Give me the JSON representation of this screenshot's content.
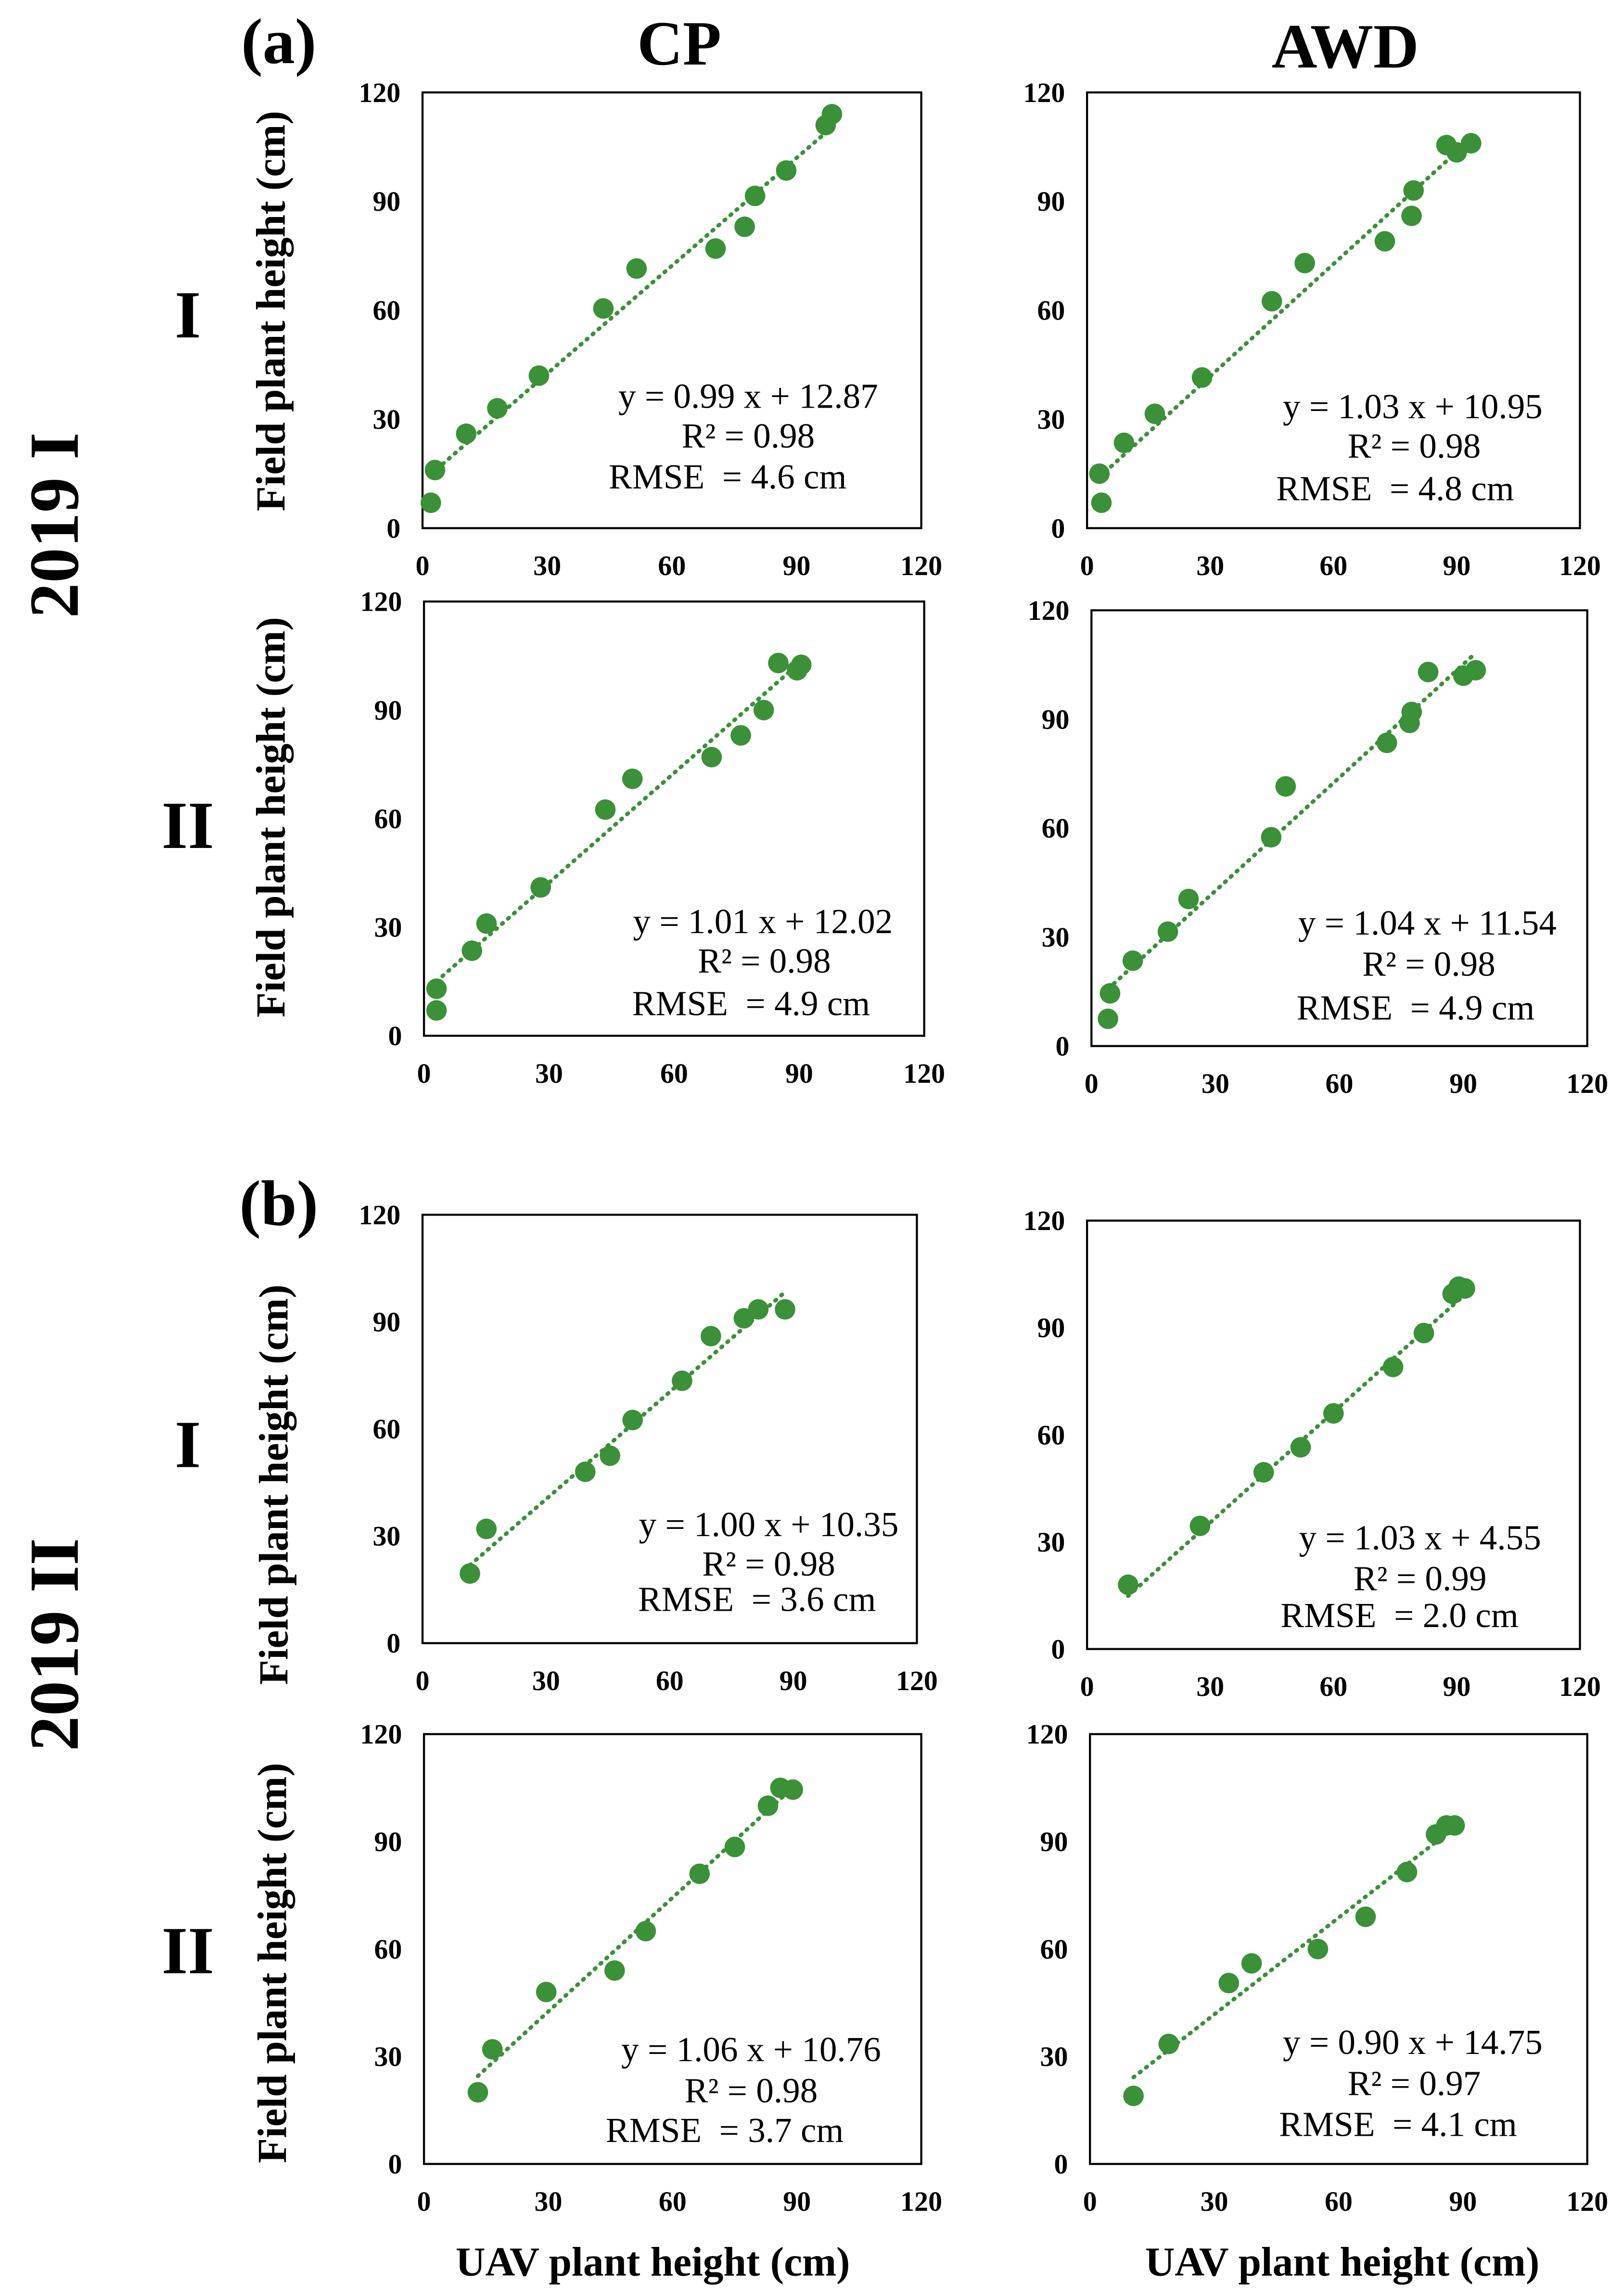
{
  "figure": {
    "part_labels": [
      "(a)",
      "(b)"
    ],
    "column_headers": [
      "CP",
      "AWD"
    ],
    "group_labels": [
      "2019 I",
      "2019 II"
    ],
    "row_labels": [
      "I",
      "II",
      "I",
      "II"
    ]
  },
  "colors": {
    "marker": "#3a9138",
    "trendline": "#3a9138",
    "axis": "#000000"
  },
  "chart_data": [
    {
      "type": "scatter",
      "ylabel": "Field plant height (cm)",
      "xlim": [
        0,
        120
      ],
      "ylim": [
        0,
        120
      ],
      "xticks": [
        0,
        30,
        60,
        90,
        120
      ],
      "yticks": [
        0,
        30,
        60,
        90,
        120
      ],
      "grid": false,
      "x": [
        2,
        3,
        10.5,
        18,
        28,
        43.5,
        51.5,
        70.5,
        77.5,
        80,
        87.5,
        97,
        98.5
      ],
      "y": [
        7,
        16,
        26,
        33,
        42,
        60.5,
        71.5,
        77,
        83,
        91.5,
        98.5,
        111,
        114
      ],
      "trendline": {
        "slope": 0.99,
        "intercept": 12.87,
        "style": "dotted"
      },
      "annotations": [
        "y = 0.99 x + 12.87",
        "R² = 0.98",
        "RMSE  = 4.6 cm"
      ]
    },
    {
      "type": "scatter",
      "xlim": [
        0,
        120
      ],
      "ylim": [
        0,
        120
      ],
      "xticks": [
        0,
        30,
        60,
        90,
        120
      ],
      "yticks": [
        0,
        30,
        60,
        90,
        120
      ],
      "grid": false,
      "x": [
        3.5,
        3,
        9,
        16.5,
        28,
        45,
        53,
        72.5,
        79,
        79.5,
        87.5,
        90,
        93.5
      ],
      "y": [
        7,
        15,
        23.5,
        31.5,
        41.5,
        62.5,
        73,
        79,
        86,
        93,
        105.5,
        103.5,
        106
      ],
      "trendline": {
        "slope": 1.03,
        "intercept": 10.95,
        "style": "dotted"
      },
      "annotations": [
        "y = 1.03 x + 10.95",
        "R² = 0.98",
        "RMSE  = 4.8 cm"
      ]
    },
    {
      "type": "scatter",
      "ylabel": "Field plant height (cm)",
      "xlim": [
        0,
        120
      ],
      "ylim": [
        0,
        120
      ],
      "xticks": [
        0,
        30,
        60,
        90,
        120
      ],
      "yticks": [
        0,
        30,
        60,
        90,
        120
      ],
      "grid": false,
      "x": [
        3,
        3,
        11.5,
        15,
        28,
        43.5,
        50,
        69,
        76,
        81.5,
        85,
        89.5,
        90.5
      ],
      "y": [
        7,
        13,
        23.5,
        31,
        41,
        62.5,
        71,
        77,
        83,
        90,
        103,
        101,
        102.5
      ],
      "trendline": {
        "slope": 1.01,
        "intercept": 12.02,
        "style": "dotted"
      },
      "annotations": [
        "y = 1.01 x + 12.02",
        "R² = 0.98",
        "RMSE  = 4.9 cm"
      ]
    },
    {
      "type": "scatter",
      "xlim": [
        0,
        120
      ],
      "ylim": [
        0,
        120
      ],
      "xticks": [
        0,
        30,
        60,
        90,
        120
      ],
      "yticks": [
        0,
        30,
        60,
        90,
        120
      ],
      "grid": false,
      "x": [
        4,
        4.5,
        10,
        18.5,
        23.5,
        43.5,
        47,
        71.5,
        77,
        77.5,
        81.5,
        90,
        93
      ],
      "y": [
        7.5,
        14.5,
        23.5,
        31.5,
        40.5,
        57.5,
        71.5,
        83.5,
        89,
        92,
        103,
        102,
        103.5
      ],
      "trendline": {
        "slope": 1.04,
        "intercept": 11.54,
        "style": "dotted"
      },
      "annotations": [
        "y = 1.04 x + 11.54",
        "R² = 0.98",
        "RMSE  = 4.9 cm"
      ]
    },
    {
      "type": "scatter",
      "ylabel": "Field plant height (cm)",
      "xlim": [
        0,
        120
      ],
      "ylim": [
        0,
        120
      ],
      "xticks": [
        0,
        30,
        60,
        90,
        120
      ],
      "yticks": [
        0,
        30,
        60,
        90,
        120
      ],
      "grid": false,
      "x": [
        11.5,
        15.5,
        39.5,
        45.5,
        51,
        63,
        70,
        78,
        81.5,
        88
      ],
      "y": [
        19.5,
        32,
        48,
        52.5,
        62.5,
        73.5,
        86,
        91,
        93.5,
        93.5
      ],
      "trendline": {
        "slope": 1.0,
        "intercept": 10.35,
        "style": "dotted"
      },
      "annotations": [
        "y = 1.00 x + 10.35",
        "R² = 0.98",
        "RMSE  = 3.6 cm"
      ]
    },
    {
      "type": "scatter",
      "xlim": [
        0,
        120
      ],
      "ylim": [
        0,
        120
      ],
      "xticks": [
        0,
        30,
        60,
        90,
        120
      ],
      "yticks": [
        0,
        30,
        60,
        90,
        120
      ],
      "grid": false,
      "x": [
        10,
        27.5,
        43,
        52,
        60,
        74.5,
        82,
        89,
        90.5,
        92
      ],
      "y": [
        18,
        34.5,
        49.5,
        56.5,
        66,
        79,
        88.5,
        99.5,
        101.5,
        101
      ],
      "trendline": {
        "slope": 1.03,
        "intercept": 4.55,
        "style": "dotted"
      },
      "annotations": [
        "y = 1.03 x + 4.55",
        "R² = 0.99",
        "RMSE  = 2.0 cm"
      ]
    },
    {
      "type": "scatter",
      "xlabel": "UAV plant height (cm)",
      "ylabel": "Field plant height (cm)",
      "xlim": [
        0,
        120
      ],
      "ylim": [
        0,
        120
      ],
      "xticks": [
        0,
        30,
        60,
        90,
        120
      ],
      "yticks": [
        0,
        30,
        60,
        90,
        120
      ],
      "grid": false,
      "x": [
        13,
        16.5,
        29.5,
        46,
        53.5,
        66.5,
        75,
        83,
        86,
        89
      ],
      "y": [
        20,
        32,
        48,
        54,
        65,
        81,
        88.5,
        100,
        105,
        104.5
      ],
      "trendline": {
        "slope": 1.06,
        "intercept": 10.76,
        "style": "dotted"
      },
      "annotations": [
        "y = 1.06 x + 10.76",
        "R² = 0.98",
        "RMSE  = 3.7 cm"
      ]
    },
    {
      "type": "scatter",
      "xlabel": "UAV plant height (cm)",
      "xlim": [
        0,
        120
      ],
      "ylim": [
        0,
        120
      ],
      "xticks": [
        0,
        30,
        60,
        90,
        120
      ],
      "yticks": [
        0,
        30,
        60,
        90,
        120
      ],
      "grid": false,
      "x": [
        10.5,
        19,
        33.5,
        39,
        55,
        66.5,
        76.5,
        83.5,
        86,
        88
      ],
      "y": [
        19,
        33.5,
        50.5,
        56,
        60,
        69,
        81.5,
        92,
        94.5,
        94.5
      ],
      "trendline": {
        "slope": 0.9,
        "intercept": 14.75,
        "style": "dotted"
      },
      "annotations": [
        "y = 0.90 x + 14.75",
        "R² = 0.97",
        "RMSE  = 4.1 cm"
      ]
    }
  ]
}
